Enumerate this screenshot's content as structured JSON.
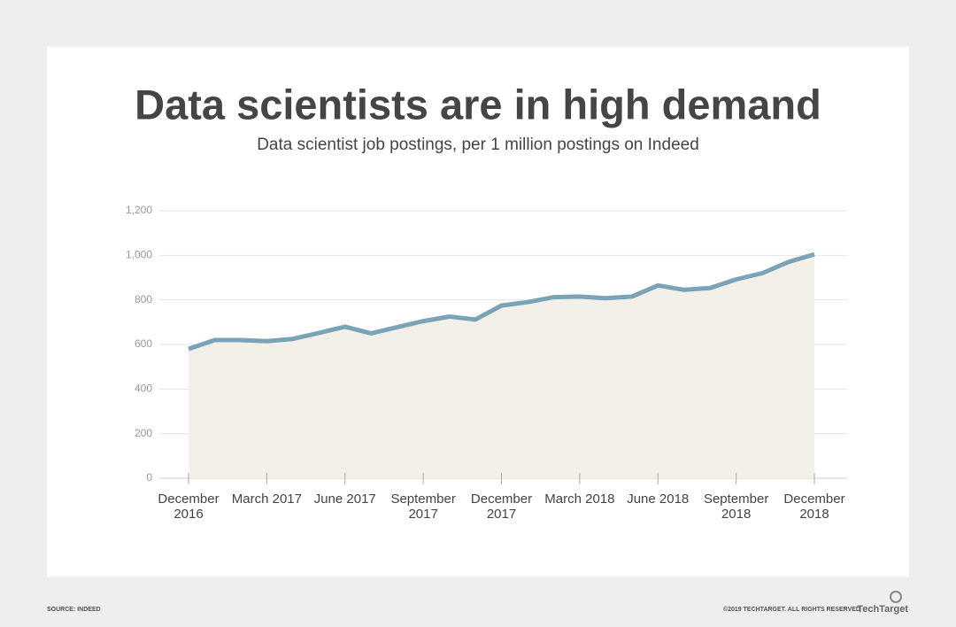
{
  "chart_data": {
    "type": "line",
    "title": "Data scientists are in high demand",
    "subtitle": "Data scientist job postings, per 1 million postings on Indeed",
    "categories": [
      "December 2016",
      null,
      null,
      "March 2017",
      null,
      null,
      "June 2017",
      null,
      null,
      "September 2017",
      null,
      null,
      "December 2017",
      null,
      null,
      "March 2018",
      null,
      null,
      "June 2018",
      null,
      null,
      "September 2018",
      null,
      null,
      "December 2018"
    ],
    "values": [
      580,
      620,
      620,
      615,
      625,
      652,
      680,
      650,
      678,
      705,
      725,
      712,
      775,
      790,
      812,
      815,
      808,
      815,
      865,
      845,
      853,
      892,
      920,
      970,
      1005
    ],
    "color": "#7aa3b8",
    "area_color": "#f3f0ea",
    "ylim": [
      0,
      1200
    ],
    "yticks": [
      0,
      200,
      400,
      600,
      800,
      {
        "value": 1000,
        "label": "1,000"
      },
      {
        "value": 1200,
        "label": "1,200"
      }
    ],
    "grid": true
  },
  "footer": {
    "source": "SOURCE: INDEED",
    "copyright": "©2019 TECHTARGET. ALL RIGHTS RESERVED",
    "logo": "TechTarget"
  }
}
